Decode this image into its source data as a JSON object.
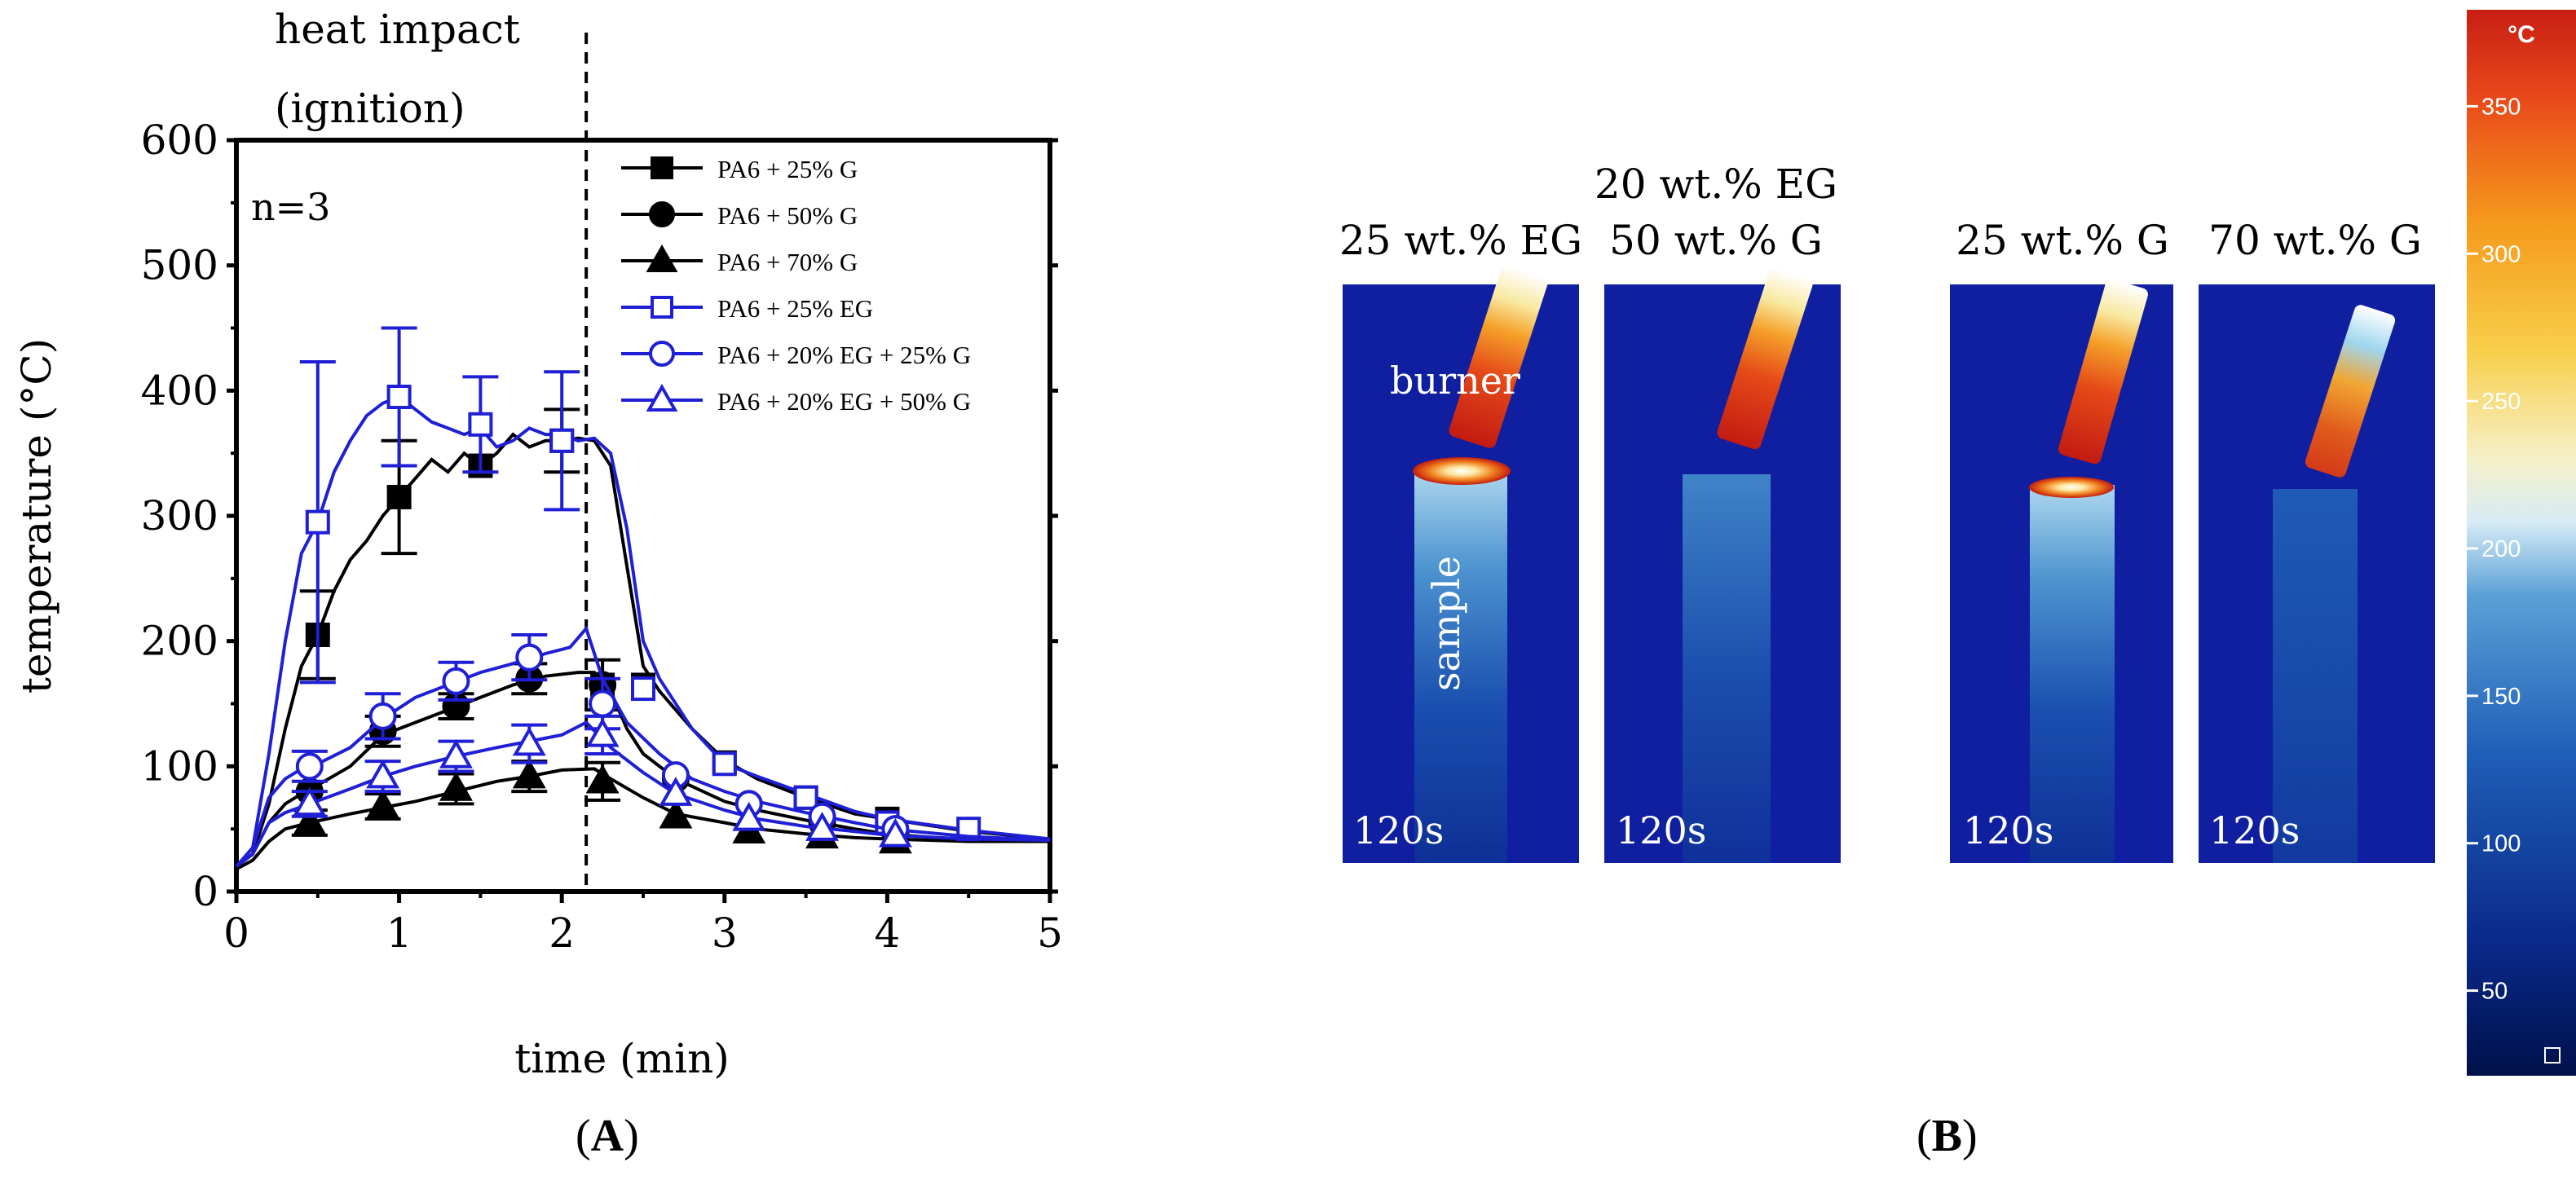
{
  "chart_data": [
    {
      "type": "line",
      "panel": "A",
      "xlabel": "time (min)",
      "ylabel": "temperature (°C)",
      "xlim": [
        0,
        5
      ],
      "ylim": [
        0,
        600
      ],
      "xticks": [
        0,
        1,
        2,
        3,
        4,
        5
      ],
      "yticks": [
        0,
        100,
        200,
        300,
        400,
        500,
        600
      ],
      "annotations": {
        "heat_line1": "heat impact",
        "heat_line2": "(ignition)",
        "n": "n=3",
        "heat_impact_time": 2.15
      },
      "legend_position": "top-right",
      "series": [
        {
          "name": "PA6 + 25% G",
          "color": "#000000",
          "marker": "square",
          "filled": true,
          "curve": [
            [
              0,
              20
            ],
            [
              0.1,
              30
            ],
            [
              0.2,
              70
            ],
            [
              0.3,
              130
            ],
            [
              0.4,
              180
            ],
            [
              0.5,
              205
            ],
            [
              0.6,
              240
            ],
            [
              0.7,
              265
            ],
            [
              0.8,
              280
            ],
            [
              0.9,
              300
            ],
            [
              1.0,
              315
            ],
            [
              1.1,
              330
            ],
            [
              1.2,
              345
            ],
            [
              1.3,
              335
            ],
            [
              1.4,
              350
            ],
            [
              1.5,
              340
            ],
            [
              1.6,
              350
            ],
            [
              1.7,
              365
            ],
            [
              1.8,
              355
            ],
            [
              1.9,
              360
            ],
            [
              2.0,
              360
            ],
            [
              2.1,
              362
            ],
            [
              2.2,
              360
            ],
            [
              2.3,
              340
            ],
            [
              2.4,
              260
            ],
            [
              2.5,
              180
            ],
            [
              2.6,
              160
            ],
            [
              2.8,
              130
            ],
            [
              3.0,
              105
            ],
            [
              3.2,
              90
            ],
            [
              3.5,
              75
            ],
            [
              3.8,
              62
            ],
            [
              4.0,
              58
            ],
            [
              4.5,
              48
            ],
            [
              5.0,
              42
            ]
          ],
          "points": [
            [
              0.5,
              205,
              35
            ],
            [
              1.0,
              315,
              45
            ],
            [
              1.5,
              340,
              0
            ],
            [
              2.0,
              360,
              25
            ],
            [
              2.25,
              165,
              0
            ],
            [
              2.5,
              165,
              0
            ],
            [
              3.0,
              103,
              0
            ],
            [
              3.5,
              75,
              0
            ],
            [
              4.0,
              58,
              0
            ]
          ]
        },
        {
          "name": "PA6 + 50% G",
          "color": "#000000",
          "marker": "circle",
          "filled": true,
          "curve": [
            [
              0,
              20
            ],
            [
              0.1,
              30
            ],
            [
              0.2,
              55
            ],
            [
              0.3,
              70
            ],
            [
              0.4,
              78
            ],
            [
              0.5,
              85
            ],
            [
              0.7,
              100
            ],
            [
              0.9,
              125
            ],
            [
              1.1,
              135
            ],
            [
              1.3,
              145
            ],
            [
              1.5,
              155
            ],
            [
              1.7,
              165
            ],
            [
              1.9,
              172
            ],
            [
              2.1,
              175
            ],
            [
              2.2,
              175
            ],
            [
              2.3,
              160
            ],
            [
              2.4,
              130
            ],
            [
              2.5,
              110
            ],
            [
              2.7,
              90
            ],
            [
              3.0,
              72
            ],
            [
              3.2,
              65
            ],
            [
              3.5,
              57
            ],
            [
              3.8,
              50
            ],
            [
              4.0,
              46
            ],
            [
              4.5,
              41
            ],
            [
              5.0,
              40
            ]
          ],
          "points": [
            [
              0.45,
              80,
              0
            ],
            [
              0.9,
              128,
              12
            ],
            [
              1.35,
              148,
              10
            ],
            [
              1.8,
              170,
              12
            ],
            [
              2.25,
              165,
              20
            ],
            [
              2.7,
              90,
              0
            ],
            [
              3.15,
              70,
              0
            ],
            [
              3.6,
              55,
              0
            ],
            [
              4.05,
              46,
              0
            ]
          ]
        },
        {
          "name": "PA6 + 70% G",
          "color": "#000000",
          "marker": "triangle",
          "filled": true,
          "curve": [
            [
              0,
              18
            ],
            [
              0.1,
              25
            ],
            [
              0.2,
              40
            ],
            [
              0.3,
              50
            ],
            [
              0.45,
              55
            ],
            [
              0.7,
              62
            ],
            [
              0.9,
              67
            ],
            [
              1.1,
              72
            ],
            [
              1.35,
              80
            ],
            [
              1.6,
              88
            ],
            [
              1.8,
              92
            ],
            [
              2.0,
              97
            ],
            [
              2.2,
              98
            ],
            [
              2.3,
              90
            ],
            [
              2.5,
              75
            ],
            [
              2.7,
              62
            ],
            [
              3.0,
              55
            ],
            [
              3.2,
              50
            ],
            [
              3.5,
              46
            ],
            [
              3.8,
              43
            ],
            [
              4.0,
              42
            ],
            [
              4.5,
              40
            ],
            [
              5.0,
              40
            ]
          ],
          "points": [
            [
              0.45,
              55,
              10
            ],
            [
              0.9,
              68,
              10
            ],
            [
              1.35,
              82,
              12
            ],
            [
              1.8,
              92,
              12
            ],
            [
              2.25,
              88,
              15
            ],
            [
              2.7,
              60,
              0
            ],
            [
              3.15,
              48,
              0
            ],
            [
              3.6,
              44,
              0
            ],
            [
              4.05,
              40,
              0
            ]
          ]
        },
        {
          "name": "PA6 + 25% EG",
          "color": "#1f1fd6",
          "marker": "square",
          "filled": false,
          "curve": [
            [
              0,
              20
            ],
            [
              0.1,
              35
            ],
            [
              0.2,
              110
            ],
            [
              0.3,
              200
            ],
            [
              0.4,
              270
            ],
            [
              0.5,
              295
            ],
            [
              0.6,
              335
            ],
            [
              0.7,
              360
            ],
            [
              0.8,
              380
            ],
            [
              0.9,
              390
            ],
            [
              1.0,
              395
            ],
            [
              1.1,
              385
            ],
            [
              1.2,
              375
            ],
            [
              1.3,
              370
            ],
            [
              1.4,
              365
            ],
            [
              1.5,
              370
            ],
            [
              1.6,
              355
            ],
            [
              1.7,
              360
            ],
            [
              1.8,
              370
            ],
            [
              1.9,
              365
            ],
            [
              2.0,
              365
            ],
            [
              2.1,
              360
            ],
            [
              2.2,
              362
            ],
            [
              2.3,
              350
            ],
            [
              2.4,
              290
            ],
            [
              2.5,
              200
            ],
            [
              2.6,
              170
            ],
            [
              2.8,
              130
            ],
            [
              3.0,
              102
            ],
            [
              3.2,
              92
            ],
            [
              3.5,
              78
            ],
            [
              3.8,
              64
            ],
            [
              4.0,
              58
            ],
            [
              4.5,
              49
            ],
            [
              5.0,
              42
            ]
          ],
          "points": [
            [
              0.5,
              295,
              128
            ],
            [
              1.0,
              395,
              55
            ],
            [
              1.5,
              373,
              38
            ],
            [
              2.0,
              360,
              55
            ],
            [
              2.5,
              162,
              0
            ],
            [
              3.0,
              102,
              0
            ],
            [
              3.5,
              75,
              0
            ],
            [
              4.0,
              55,
              0
            ],
            [
              4.5,
              50,
              0
            ]
          ]
        },
        {
          "name": "PA6 + 20% EG + 25% G",
          "color": "#1f1fd6",
          "marker": "circle",
          "filled": false,
          "curve": [
            [
              0,
              20
            ],
            [
              0.1,
              35
            ],
            [
              0.2,
              75
            ],
            [
              0.3,
              90
            ],
            [
              0.4,
              98
            ],
            [
              0.5,
              102
            ],
            [
              0.7,
              115
            ],
            [
              0.9,
              138
            ],
            [
              1.1,
              155
            ],
            [
              1.3,
              165
            ],
            [
              1.5,
              175
            ],
            [
              1.7,
              182
            ],
            [
              1.9,
              190
            ],
            [
              2.05,
              195
            ],
            [
              2.15,
              210
            ],
            [
              2.25,
              170
            ],
            [
              2.4,
              135
            ],
            [
              2.6,
              110
            ],
            [
              2.8,
              90
            ],
            [
              3.0,
              80
            ],
            [
              3.2,
              72
            ],
            [
              3.5,
              63
            ],
            [
              3.8,
              55
            ],
            [
              4.0,
              50
            ],
            [
              4.5,
              44
            ],
            [
              5.0,
              41
            ]
          ],
          "points": [
            [
              0.45,
              100,
              12
            ],
            [
              0.9,
              140,
              18
            ],
            [
              1.35,
              168,
              15
            ],
            [
              1.8,
              187,
              18
            ],
            [
              2.25,
              150,
              20
            ],
            [
              2.7,
              93,
              0
            ],
            [
              3.15,
              70,
              0
            ],
            [
              3.6,
              60,
              0
            ],
            [
              4.05,
              50,
              0
            ]
          ]
        },
        {
          "name": "PA6 + 20% EG + 50% G",
          "color": "#1f1fd6",
          "marker": "triangle",
          "filled": false,
          "curve": [
            [
              0,
              20
            ],
            [
              0.1,
              30
            ],
            [
              0.2,
              55
            ],
            [
              0.3,
              63
            ],
            [
              0.45,
              70
            ],
            [
              0.7,
              82
            ],
            [
              0.9,
              92
            ],
            [
              1.1,
              100
            ],
            [
              1.35,
              108
            ],
            [
              1.6,
              115
            ],
            [
              1.8,
              120
            ],
            [
              2.0,
              125
            ],
            [
              2.15,
              135
            ],
            [
              2.3,
              115
            ],
            [
              2.5,
              95
            ],
            [
              2.7,
              78
            ],
            [
              3.0,
              65
            ],
            [
              3.2,
              58
            ],
            [
              3.5,
              52
            ],
            [
              3.8,
              48
            ],
            [
              4.0,
              45
            ],
            [
              4.5,
              42
            ],
            [
              5.0,
              41
            ]
          ],
          "points": [
            [
              0.45,
              70,
              10
            ],
            [
              0.9,
              92,
              12
            ],
            [
              1.35,
              108,
              12
            ],
            [
              1.8,
              118,
              15
            ],
            [
              2.25,
              125,
              15
            ],
            [
              2.7,
              78,
              0
            ],
            [
              3.15,
              58,
              0
            ],
            [
              3.6,
              50,
              0
            ],
            [
              4.05,
              45,
              0
            ]
          ]
        }
      ]
    },
    {
      "type": "heatmap",
      "panel": "B",
      "colorbar": {
        "unit": "°C",
        "ticks": [
          50,
          100,
          150,
          200,
          250,
          300,
          350
        ],
        "min": 25,
        "max": 375
      },
      "images": [
        {
          "label_lines": [
            "25 wt.% EG"
          ],
          "time": "120s",
          "burner_label": "burner",
          "sample_label": "sample",
          "hot_top": true,
          "sample_temp": "hot"
        },
        {
          "label_lines": [
            "20 wt.% EG",
            "50 wt.% G"
          ],
          "time": "120s",
          "hot_top": false,
          "sample_temp": "warm"
        },
        {
          "label_lines": [
            "25 wt.% G"
          ],
          "time": "120s",
          "hot_top": true,
          "sample_temp": "hot"
        },
        {
          "label_lines": [
            "70 wt.% G"
          ],
          "time": "120s",
          "hot_top": false,
          "sample_temp": "cool"
        }
      ]
    }
  ],
  "panel_labels": {
    "a": "A",
    "b": "B"
  }
}
